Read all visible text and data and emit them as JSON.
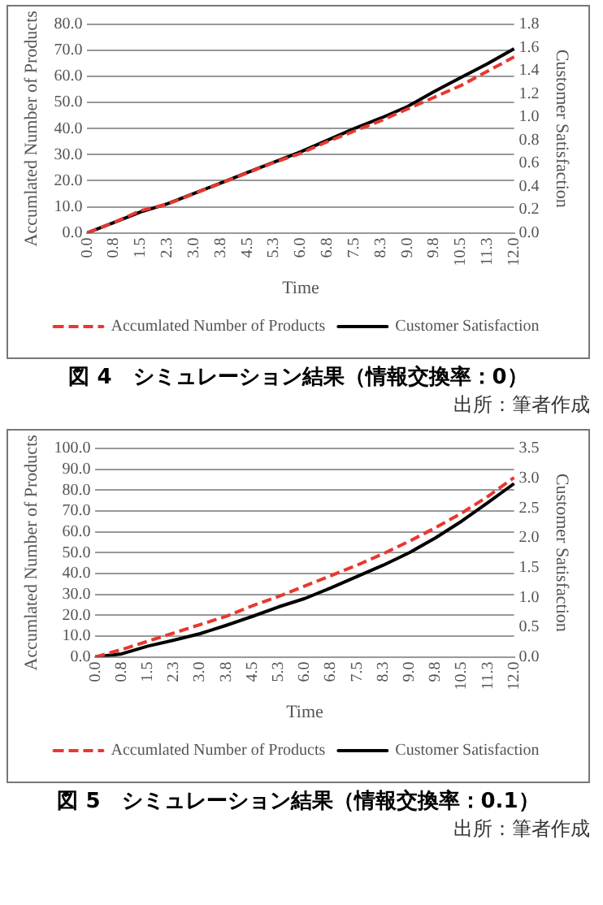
{
  "chart_data": [
    {
      "type": "line",
      "title": "図 4　シミュレーション結果（情報交換率：0）",
      "xlabel": "Time",
      "ylabel": "Accumlated Number of Products",
      "y2label": "Customer Satisfaction",
      "annotations": [
        "出所：筆者作成"
      ],
      "categories": [
        "0.0",
        "0.8",
        "1.5",
        "2.3",
        "3.0",
        "3.8",
        "4.5",
        "5.3",
        "6.0",
        "6.8",
        "7.5",
        "8.3",
        "9.0",
        "9.8",
        "10.5",
        "11.3",
        "12.0"
      ],
      "series": [
        {
          "name": "Accumlated Number of Products",
          "color": "#e8382f",
          "line_style": "dashed",
          "values": [
            0,
            4,
            8.5,
            11,
            15,
            19,
            23,
            27,
            30.5,
            35,
            39,
            43,
            47.5,
            52,
            56.5,
            62,
            67.5
          ]
        },
        {
          "name": "Customer Satisfaction",
          "color": "#000000",
          "line_style": "solid",
          "axis": "y2",
          "values": [
            0,
            0.09,
            0.18,
            0.25,
            0.34,
            0.43,
            0.52,
            0.61,
            0.7,
            0.8,
            0.9,
            0.99,
            1.09,
            1.22,
            1.34,
            1.46,
            1.59
          ]
        }
      ],
      "ylim": [
        0,
        80
      ],
      "yticks": [
        {
          "value": 0,
          "label": "0.0"
        },
        {
          "value": 10,
          "label": "10.0"
        },
        {
          "value": 20,
          "label": "20.0"
        },
        {
          "value": 30,
          "label": "30.0"
        },
        {
          "value": 40,
          "label": "40.0"
        },
        {
          "value": 50,
          "label": "50.0"
        },
        {
          "value": 60,
          "label": "60.0"
        },
        {
          "value": 70,
          "label": "70.0"
        },
        {
          "value": 80,
          "label": "80.0"
        }
      ],
      "y2lim": [
        0,
        1.8
      ],
      "y2ticks": [
        {
          "value": 0,
          "label": "0.0"
        },
        {
          "value": 0.2,
          "label": "0.2"
        },
        {
          "value": 0.4,
          "label": "0.4"
        },
        {
          "value": 0.6,
          "label": "0.6"
        },
        {
          "value": 0.8,
          "label": "0.8"
        },
        {
          "value": 1,
          "label": "1.0"
        },
        {
          "value": 1.2,
          "label": "1.2"
        },
        {
          "value": 1.4,
          "label": "1.4"
        },
        {
          "value": 1.6,
          "label": "1.6"
        },
        {
          "value": 1.8,
          "label": "1.8"
        }
      ],
      "grid": "y",
      "legend": "bottom",
      "marker": "none"
    },
    {
      "type": "line",
      "title": "図 5　シミュレーション結果（情報交換率：0.1）",
      "xlabel": "Time",
      "ylabel": "Accumlated Number of Products",
      "y2label": "Customer Satisfaction",
      "annotations": [
        "出所：筆者作成"
      ],
      "categories": [
        "0.0",
        "0.8",
        "1.5",
        "2.3",
        "3.0",
        "3.8",
        "4.5",
        "5.3",
        "6.0",
        "6.8",
        "7.5",
        "8.3",
        "9.0",
        "9.8",
        "10.5",
        "11.3",
        "12.0"
      ],
      "series": [
        {
          "name": "Accumlated Number of Products",
          "color": "#e8382f",
          "line_style": "dashed",
          "values": [
            0,
            3.5,
            7.5,
            11.5,
            15.5,
            19.5,
            24.5,
            29,
            34,
            39,
            44,
            49.5,
            55.5,
            62,
            69,
            77,
            86
          ]
        },
        {
          "name": "Customer Satisfaction",
          "color": "#000000",
          "line_style": "solid",
          "axis": "y2",
          "values": [
            0,
            0.05,
            0.18,
            0.28,
            0.39,
            0.53,
            0.68,
            0.84,
            0.98,
            1.16,
            1.35,
            1.54,
            1.75,
            2,
            2.28,
            2.59,
            2.91
          ]
        }
      ],
      "ylim": [
        0,
        100
      ],
      "yticks": [
        {
          "value": 0,
          "label": "0.0"
        },
        {
          "value": 10,
          "label": "10.0"
        },
        {
          "value": 20,
          "label": "20.0"
        },
        {
          "value": 30,
          "label": "30.0"
        },
        {
          "value": 40,
          "label": "40.0"
        },
        {
          "value": 50,
          "label": "50.0"
        },
        {
          "value": 60,
          "label": "60.0"
        },
        {
          "value": 70,
          "label": "70.0"
        },
        {
          "value": 80,
          "label": "80.0"
        },
        {
          "value": 90,
          "label": "90.0"
        },
        {
          "value": 100,
          "label": "100.0"
        }
      ],
      "y2lim": [
        0,
        3.5
      ],
      "y2ticks": [
        {
          "value": 0,
          "label": "0.0"
        },
        {
          "value": 0.5,
          "label": "0.5"
        },
        {
          "value": 1,
          "label": "1.0"
        },
        {
          "value": 1.5,
          "label": "1.5"
        },
        {
          "value": 2,
          "label": "2.0"
        },
        {
          "value": 2.5,
          "label": "2.5"
        },
        {
          "value": 3,
          "label": "3.0"
        },
        {
          "value": 3.5,
          "label": "3.5"
        }
      ],
      "grid": "y",
      "legend": "bottom",
      "marker": "none"
    }
  ]
}
